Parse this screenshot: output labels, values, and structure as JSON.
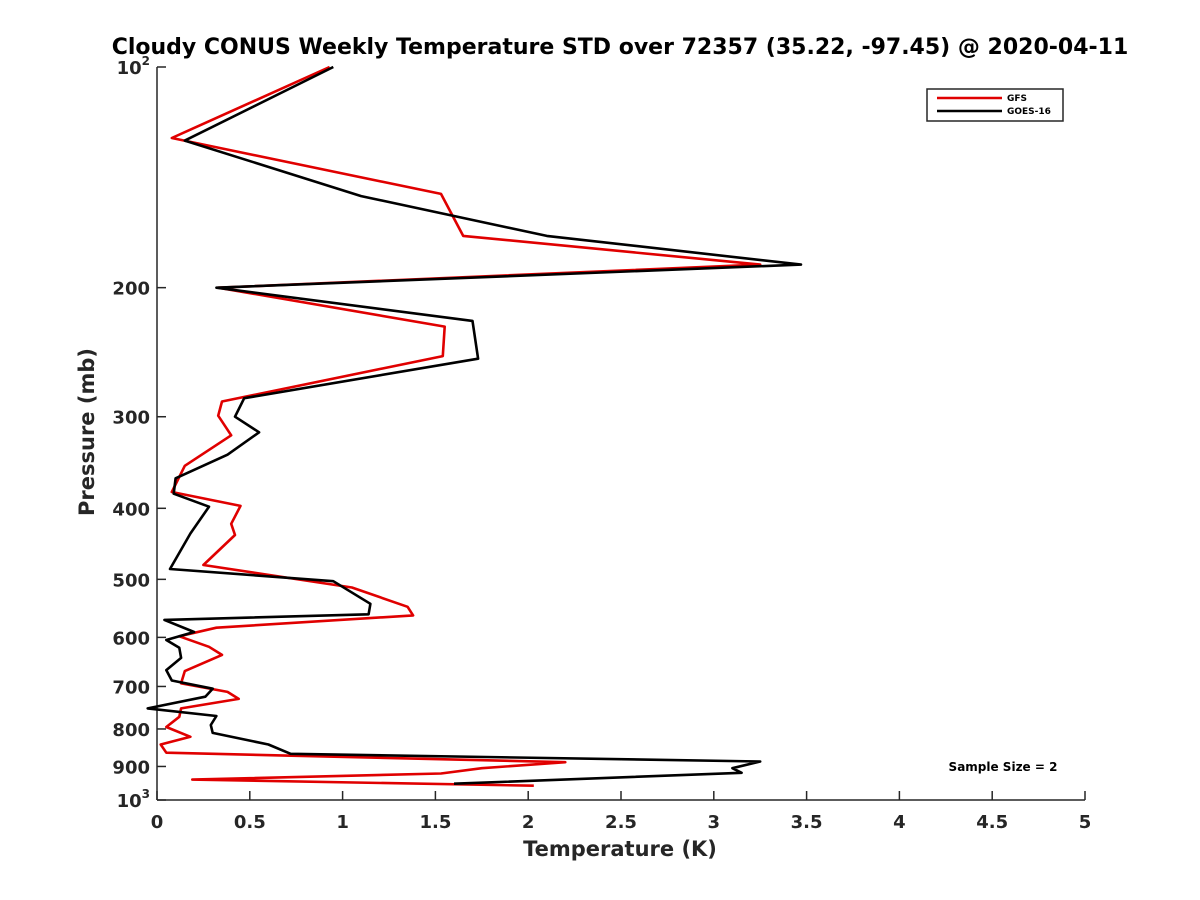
{
  "chart_data": {
    "type": "line",
    "title": "Cloudy CONUS Weekly Temperature STD over 72357 (35.22, -97.45) @ 2020-04-11",
    "xlabel": "Temperature (K)",
    "ylabel": "Pressure (mb)",
    "xlim": [
      0,
      5
    ],
    "ylim": [
      100,
      1000
    ],
    "y_scale": "log",
    "y_reversed": true,
    "xticks": [
      0,
      0.5,
      1,
      1.5,
      2,
      2.5,
      3,
      3.5,
      4,
      4.5,
      5
    ],
    "xtick_labels": [
      "0",
      "0.5",
      "1",
      "1.5",
      "2",
      "2.5",
      "3",
      "3.5",
      "4",
      "4.5",
      "5"
    ],
    "yticks": [
      {
        "value": 100,
        "base": "10",
        "exp": "2"
      },
      {
        "value": 200,
        "label": "200"
      },
      {
        "value": 300,
        "label": "300"
      },
      {
        "value": 400,
        "label": "400"
      },
      {
        "value": 500,
        "label": "500"
      },
      {
        "value": 600,
        "label": "600"
      },
      {
        "value": 700,
        "label": "700"
      },
      {
        "value": 800,
        "label": "800"
      },
      {
        "value": 900,
        "label": "900"
      },
      {
        "value": 1000,
        "base": "10",
        "exp": "3"
      }
    ],
    "legend_position": "top-right",
    "grid": false,
    "annotation": "Sample Size = 2",
    "series": [
      {
        "name": "GFS",
        "color": "#e00000",
        "points": [
          [
            0.93,
            100
          ],
          [
            0.08,
            125
          ],
          [
            1.53,
            149
          ],
          [
            1.65,
            170
          ],
          [
            3.25,
            186
          ],
          [
            0.33,
            200
          ],
          [
            1.55,
            226
          ],
          [
            1.54,
            248
          ],
          [
            0.35,
            286
          ],
          [
            0.33,
            299
          ],
          [
            0.4,
            318
          ],
          [
            0.15,
            350
          ],
          [
            0.08,
            380
          ],
          [
            0.45,
            397
          ],
          [
            0.4,
            420
          ],
          [
            0.42,
            435
          ],
          [
            0.25,
            478
          ],
          [
            1.05,
            513
          ],
          [
            1.35,
            545
          ],
          [
            1.38,
            560
          ],
          [
            0.32,
            582
          ],
          [
            0.12,
            598
          ],
          [
            0.28,
            618
          ],
          [
            0.35,
            634
          ],
          [
            0.15,
            667
          ],
          [
            0.13,
            693
          ],
          [
            0.38,
            712
          ],
          [
            0.44,
            728
          ],
          [
            0.13,
            750
          ],
          [
            0.12,
            770
          ],
          [
            0.05,
            795
          ],
          [
            0.18,
            820
          ],
          [
            0.02,
            840
          ],
          [
            0.05,
            862
          ],
          [
            2.2,
            888
          ],
          [
            1.75,
            905
          ],
          [
            1.53,
            920
          ],
          [
            0.19,
            938
          ],
          [
            2.03,
            956
          ]
        ]
      },
      {
        "name": "GOES-16",
        "color": "#000000",
        "points": [
          [
            0.95,
            100
          ],
          [
            0.15,
            126
          ],
          [
            1.1,
            150
          ],
          [
            2.1,
            170
          ],
          [
            3.47,
            186
          ],
          [
            0.32,
            200
          ],
          [
            1.7,
            222
          ],
          [
            1.73,
            250
          ],
          [
            0.47,
            283
          ],
          [
            0.42,
            300
          ],
          [
            0.55,
            315
          ],
          [
            0.38,
            338
          ],
          [
            0.1,
            364
          ],
          [
            0.09,
            382
          ],
          [
            0.28,
            398
          ],
          [
            0.18,
            433
          ],
          [
            0.07,
            484
          ],
          [
            0.95,
            503
          ],
          [
            1.15,
            540
          ],
          [
            1.14,
            558
          ],
          [
            0.04,
            568
          ],
          [
            0.2,
            590
          ],
          [
            0.05,
            605
          ],
          [
            0.12,
            620
          ],
          [
            0.13,
            640
          ],
          [
            0.05,
            665
          ],
          [
            0.08,
            687
          ],
          [
            0.3,
            705
          ],
          [
            0.26,
            723
          ],
          [
            -0.05,
            750
          ],
          [
            0.32,
            768
          ],
          [
            0.29,
            790
          ],
          [
            0.3,
            810
          ],
          [
            0.6,
            840
          ],
          [
            0.72,
            865
          ],
          [
            3.25,
            886
          ],
          [
            3.1,
            905
          ],
          [
            3.15,
            918
          ],
          [
            1.6,
            950
          ]
        ]
      }
    ]
  }
}
